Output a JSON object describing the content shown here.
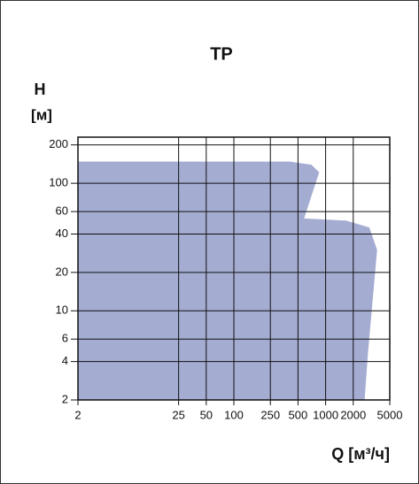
{
  "chart_data": {
    "type": "area",
    "title": "TP",
    "y_label": "H",
    "y_unit": "[м]",
    "x_label": "Q [м³/ч]",
    "x": [
      2,
      2,
      406,
      700,
      850,
      583,
      1667,
      3000,
      3640,
      2890,
      2660
    ],
    "values": [
      2,
      148,
      148,
      140,
      122,
      53,
      51,
      45,
      30,
      4.6,
      2
    ],
    "color": "#a4acd2",
    "xscale": "log",
    "yscale": "log",
    "xlim": [
      2,
      5000
    ],
    "ylim": [
      2,
      230
    ],
    "xticks": [
      2,
      25,
      50,
      100,
      250,
      500,
      1000,
      2000,
      5000
    ],
    "yticks": [
      2,
      4,
      6,
      10,
      20,
      40,
      60,
      100,
      200
    ],
    "grid": true
  }
}
